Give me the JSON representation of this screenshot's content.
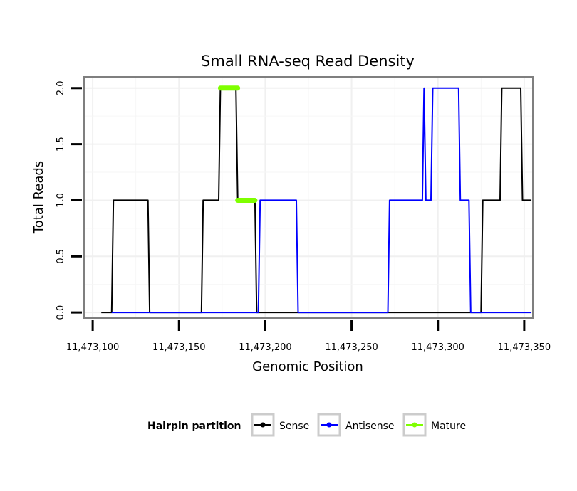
{
  "chart_data": {
    "type": "line",
    "title": "Small RNA-seq Read Density",
    "xlabel": "Genomic Position",
    "ylabel": "Total Reads",
    "xlim": [
      11473095,
      11473355
    ],
    "ylim": [
      -0.05,
      2.1
    ],
    "x_ticks": [
      11473100,
      11473150,
      11473200,
      11473250,
      11473300,
      11473350
    ],
    "x_tick_labels": [
      "11,473,100",
      "11,473,150",
      "11,473,200",
      "11,473,250",
      "11,473,300",
      "11,473,350"
    ],
    "y_ticks": [
      0,
      0.5,
      1,
      1.5,
      2
    ],
    "y_tick_labels": [
      "0.0",
      "0.5",
      "1.0",
      "1.5",
      "2.0"
    ],
    "grid": true,
    "legend": {
      "title": "Hairpin partition",
      "position": "bottom",
      "entries": [
        "Sense",
        "Antisense",
        "Mature"
      ]
    },
    "colors": {
      "Sense": "#000000",
      "Antisense": "#0000ff",
      "Mature": "#7fff00"
    },
    "series": [
      {
        "name": "Sense",
        "x": [
          11473105,
          11473111,
          11473112,
          11473132,
          11473133,
          11473163,
          11473164,
          11473173,
          11473174,
          11473183,
          11473184,
          11473194,
          11473195,
          11473325,
          11473326,
          11473336,
          11473337,
          11473348,
          11473349,
          11473354
        ],
        "y": [
          0,
          0,
          1,
          1,
          0,
          0,
          1,
          1,
          2,
          2,
          1,
          1,
          0,
          0,
          1,
          1,
          2,
          2,
          1,
          1
        ]
      },
      {
        "name": "Antisense",
        "x": [
          11473111,
          11473196,
          11473197,
          11473218,
          11473219,
          11473271,
          11473272,
          11473291,
          11473292,
          11473293,
          11473294,
          11473296,
          11473297,
          11473312,
          11473313,
          11473318,
          11473319,
          11473354
        ],
        "y": [
          0,
          0,
          1,
          1,
          0,
          0,
          1,
          1,
          2,
          1,
          1,
          1,
          2,
          2,
          1,
          1,
          0,
          0
        ]
      },
      {
        "name": "Mature",
        "segments": [
          {
            "x": [
              11473174,
              11473184
            ],
            "y": [
              2,
              2
            ]
          },
          {
            "x": [
              11473184,
              11473194
            ],
            "y": [
              1,
              1
            ]
          }
        ]
      }
    ]
  }
}
